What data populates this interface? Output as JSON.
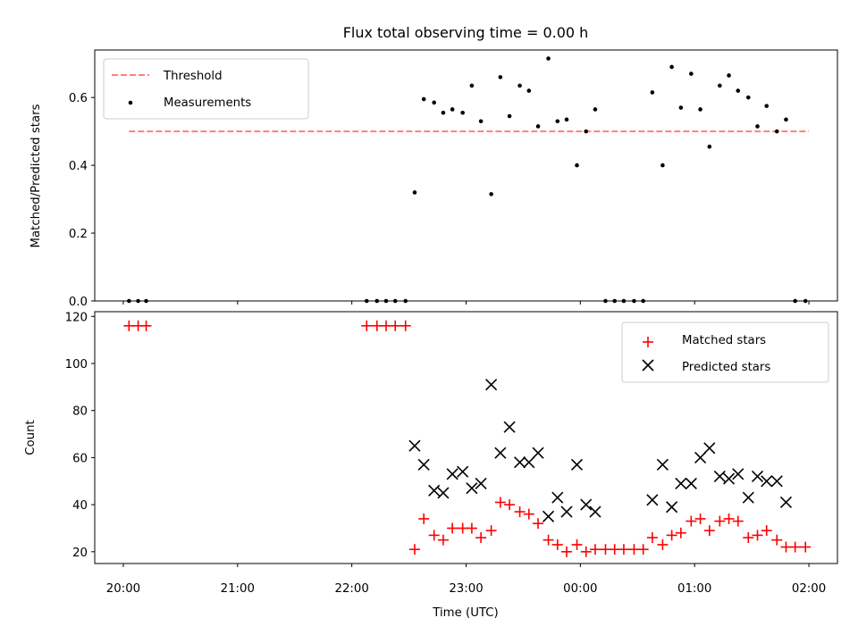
{
  "chart_data": [
    {
      "type": "scatter",
      "title": "Flux total observing time = 0.00 h",
      "xlabel": "",
      "ylabel": "Matched/Predicted stars",
      "ylim": [
        0,
        0.74
      ],
      "yticks": [
        "0.0",
        "0.2",
        "0.4",
        "0.6"
      ],
      "legend_position": "top-left",
      "threshold": {
        "name": "Threshold",
        "value": 0.5,
        "color": "#ff7f7f",
        "style": "dashed",
        "x_range_hours": [
          0.05,
          6.0
        ]
      },
      "series": [
        {
          "name": "Measurements",
          "color": "#000000",
          "marker": "dot",
          "points": [
            [
              0.05,
              0
            ],
            [
              0.13,
              0
            ],
            [
              0.2,
              0
            ],
            [
              2.13,
              0
            ],
            [
              2.22,
              0
            ],
            [
              2.3,
              0
            ],
            [
              2.38,
              0
            ],
            [
              2.47,
              0
            ],
            [
              2.55,
              0.32
            ],
            [
              2.63,
              0.595
            ],
            [
              2.72,
              0.585
            ],
            [
              2.8,
              0.555
            ],
            [
              2.88,
              0.565
            ],
            [
              2.97,
              0.555
            ],
            [
              3.05,
              0.635
            ],
            [
              3.13,
              0.53
            ],
            [
              3.22,
              0.315
            ],
            [
              3.3,
              0.66
            ],
            [
              3.38,
              0.545
            ],
            [
              3.47,
              0.635
            ],
            [
              3.55,
              0.62
            ],
            [
              3.63,
              0.515
            ],
            [
              3.72,
              0.715
            ],
            [
              3.8,
              0.53
            ],
            [
              3.88,
              0.535
            ],
            [
              3.97,
              0.4
            ],
            [
              4.05,
              0.5
            ],
            [
              4.13,
              0.565
            ],
            [
              4.22,
              0
            ],
            [
              4.3,
              0
            ],
            [
              4.38,
              0
            ],
            [
              4.47,
              0
            ],
            [
              4.55,
              0
            ],
            [
              4.63,
              0.615
            ],
            [
              4.72,
              0.4
            ],
            [
              4.8,
              0.69
            ],
            [
              4.88,
              0.57
            ],
            [
              4.97,
              0.67
            ],
            [
              5.05,
              0.565
            ],
            [
              5.13,
              0.455
            ],
            [
              5.22,
              0.635
            ],
            [
              5.3,
              0.665
            ],
            [
              5.38,
              0.62
            ],
            [
              5.47,
              0.6
            ],
            [
              5.55,
              0.515
            ],
            [
              5.63,
              0.575
            ],
            [
              5.72,
              0.5
            ],
            [
              5.8,
              0.535
            ],
            [
              5.88,
              0
            ],
            [
              5.97,
              0
            ]
          ]
        }
      ]
    },
    {
      "type": "scatter",
      "xlabel": "Time (UTC)",
      "ylabel": "Count",
      "ylim": [
        15,
        122
      ],
      "yticks": [
        "20",
        "40",
        "60",
        "80",
        "100",
        "120"
      ],
      "xlim_hours": [
        -0.25,
        6.25
      ],
      "x_base": "20:00",
      "xticks": [
        "20:00",
        "21:00",
        "22:00",
        "23:00",
        "00:00",
        "01:00",
        "02:00"
      ],
      "legend_position": "top-right",
      "series": [
        {
          "name": "Matched stars",
          "color": "#ff0000",
          "marker": "plus",
          "points": [
            [
              0.05,
              116
            ],
            [
              0.13,
              116
            ],
            [
              0.2,
              116
            ],
            [
              2.13,
              116
            ],
            [
              2.22,
              116
            ],
            [
              2.3,
              116
            ],
            [
              2.38,
              116
            ],
            [
              2.47,
              116
            ],
            [
              2.55,
              21
            ],
            [
              2.63,
              34
            ],
            [
              2.72,
              27
            ],
            [
              2.8,
              25
            ],
            [
              2.88,
              30
            ],
            [
              2.97,
              30
            ],
            [
              3.05,
              30
            ],
            [
              3.13,
              26
            ],
            [
              3.22,
              29
            ],
            [
              3.3,
              41
            ],
            [
              3.38,
              40
            ],
            [
              3.47,
              37
            ],
            [
              3.55,
              36
            ],
            [
              3.63,
              32
            ],
            [
              3.72,
              25
            ],
            [
              3.8,
              23
            ],
            [
              3.88,
              20
            ],
            [
              3.97,
              23
            ],
            [
              4.05,
              20
            ],
            [
              4.13,
              21
            ],
            [
              4.22,
              21
            ],
            [
              4.3,
              21
            ],
            [
              4.38,
              21
            ],
            [
              4.47,
              21
            ],
            [
              4.55,
              21
            ],
            [
              4.63,
              26
            ],
            [
              4.72,
              23
            ],
            [
              4.8,
              27
            ],
            [
              4.88,
              28
            ],
            [
              4.97,
              33
            ],
            [
              5.05,
              34
            ],
            [
              5.13,
              29
            ],
            [
              5.22,
              33
            ],
            [
              5.3,
              34
            ],
            [
              5.38,
              33
            ],
            [
              5.47,
              26
            ],
            [
              5.55,
              27
            ],
            [
              5.63,
              29
            ],
            [
              5.72,
              25
            ],
            [
              5.8,
              22
            ],
            [
              5.88,
              22
            ],
            [
              5.97,
              22
            ]
          ]
        },
        {
          "name": "Predicted stars",
          "color": "#000000",
          "marker": "x",
          "points": [
            [
              2.55,
              65
            ],
            [
              2.63,
              57
            ],
            [
              2.72,
              46
            ],
            [
              2.8,
              45
            ],
            [
              2.88,
              53
            ],
            [
              2.97,
              54
            ],
            [
              3.05,
              47
            ],
            [
              3.13,
              49
            ],
            [
              3.22,
              91
            ],
            [
              3.3,
              62
            ],
            [
              3.38,
              73
            ],
            [
              3.47,
              58
            ],
            [
              3.55,
              58
            ],
            [
              3.63,
              62
            ],
            [
              3.72,
              35
            ],
            [
              3.8,
              43
            ],
            [
              3.88,
              37
            ],
            [
              3.97,
              57
            ],
            [
              4.05,
              40
            ],
            [
              4.13,
              37
            ],
            [
              4.63,
              42
            ],
            [
              4.72,
              57
            ],
            [
              4.8,
              39
            ],
            [
              4.88,
              49
            ],
            [
              4.97,
              49
            ],
            [
              5.05,
              60
            ],
            [
              5.13,
              64
            ],
            [
              5.22,
              52
            ],
            [
              5.3,
              51
            ],
            [
              5.38,
              53
            ],
            [
              5.47,
              43
            ],
            [
              5.55,
              52
            ],
            [
              5.63,
              50
            ],
            [
              5.72,
              50
            ],
            [
              5.8,
              41
            ]
          ]
        }
      ]
    }
  ]
}
